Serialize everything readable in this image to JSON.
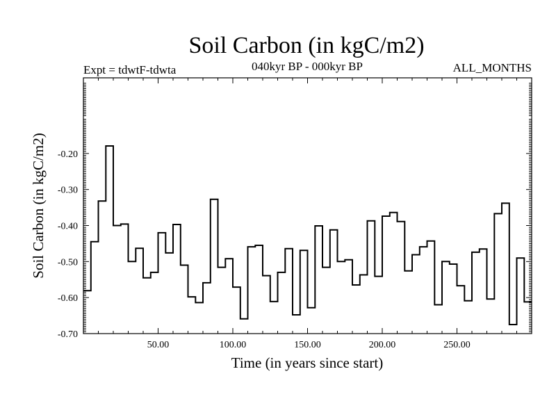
{
  "chart_data": {
    "type": "line",
    "step": true,
    "title": "Soil Carbon (in kgC/m2)",
    "left_label": "Expt = tdwtF-tdwta",
    "center_label": "040kyr BP - 000kyr BP",
    "right_label": "ALL_MONTHS",
    "xlabel": "Time (in years since start)",
    "ylabel": "Soil Carbon (in kgC/m2)",
    "xlim": [
      0,
      300
    ],
    "ylim": [
      -0.7,
      0.01
    ],
    "xticks": [
      50,
      100,
      150,
      200,
      250
    ],
    "xtick_labels": [
      "50.00",
      "100.00",
      "150.00",
      "200.00",
      "250.00"
    ],
    "yticks": [
      -0.2,
      -0.3,
      -0.4,
      -0.5,
      -0.6,
      -0.7
    ],
    "ytick_labels": [
      "-0.20",
      "-0.30",
      "-0.40",
      "-0.50",
      "-0.60",
      "-0.70"
    ],
    "x": [
      0,
      5,
      10,
      15,
      20,
      25,
      30,
      35,
      40,
      45,
      50,
      55,
      60,
      65,
      70,
      75,
      80,
      85,
      90,
      95,
      100,
      105,
      110,
      115,
      120,
      125,
      130,
      135,
      140,
      145,
      150,
      155,
      160,
      165,
      170,
      175,
      180,
      185,
      190,
      195,
      200,
      205,
      210,
      215,
      220,
      225,
      230,
      235,
      240,
      245,
      250,
      255,
      260,
      265,
      270,
      275,
      280,
      285,
      290,
      295
    ],
    "values": [
      -0.581,
      -0.445,
      -0.332,
      -0.179,
      -0.4,
      -0.396,
      -0.5,
      -0.463,
      -0.545,
      -0.53,
      -0.42,
      -0.476,
      -0.397,
      -0.51,
      -0.598,
      -0.614,
      -0.559,
      -0.327,
      -0.516,
      -0.492,
      -0.571,
      -0.659,
      -0.459,
      -0.455,
      -0.539,
      -0.611,
      -0.53,
      -0.464,
      -0.648,
      -0.469,
      -0.628,
      -0.401,
      -0.516,
      -0.412,
      -0.5,
      -0.495,
      -0.565,
      -0.537,
      -0.387,
      -0.541,
      -0.374,
      -0.364,
      -0.389,
      -0.526,
      -0.481,
      -0.459,
      -0.443,
      -0.62,
      -0.5,
      -0.507,
      -0.567,
      -0.609,
      -0.474,
      -0.465,
      -0.604,
      -0.367,
      -0.338,
      -0.675,
      -0.49,
      -0.612
    ]
  }
}
